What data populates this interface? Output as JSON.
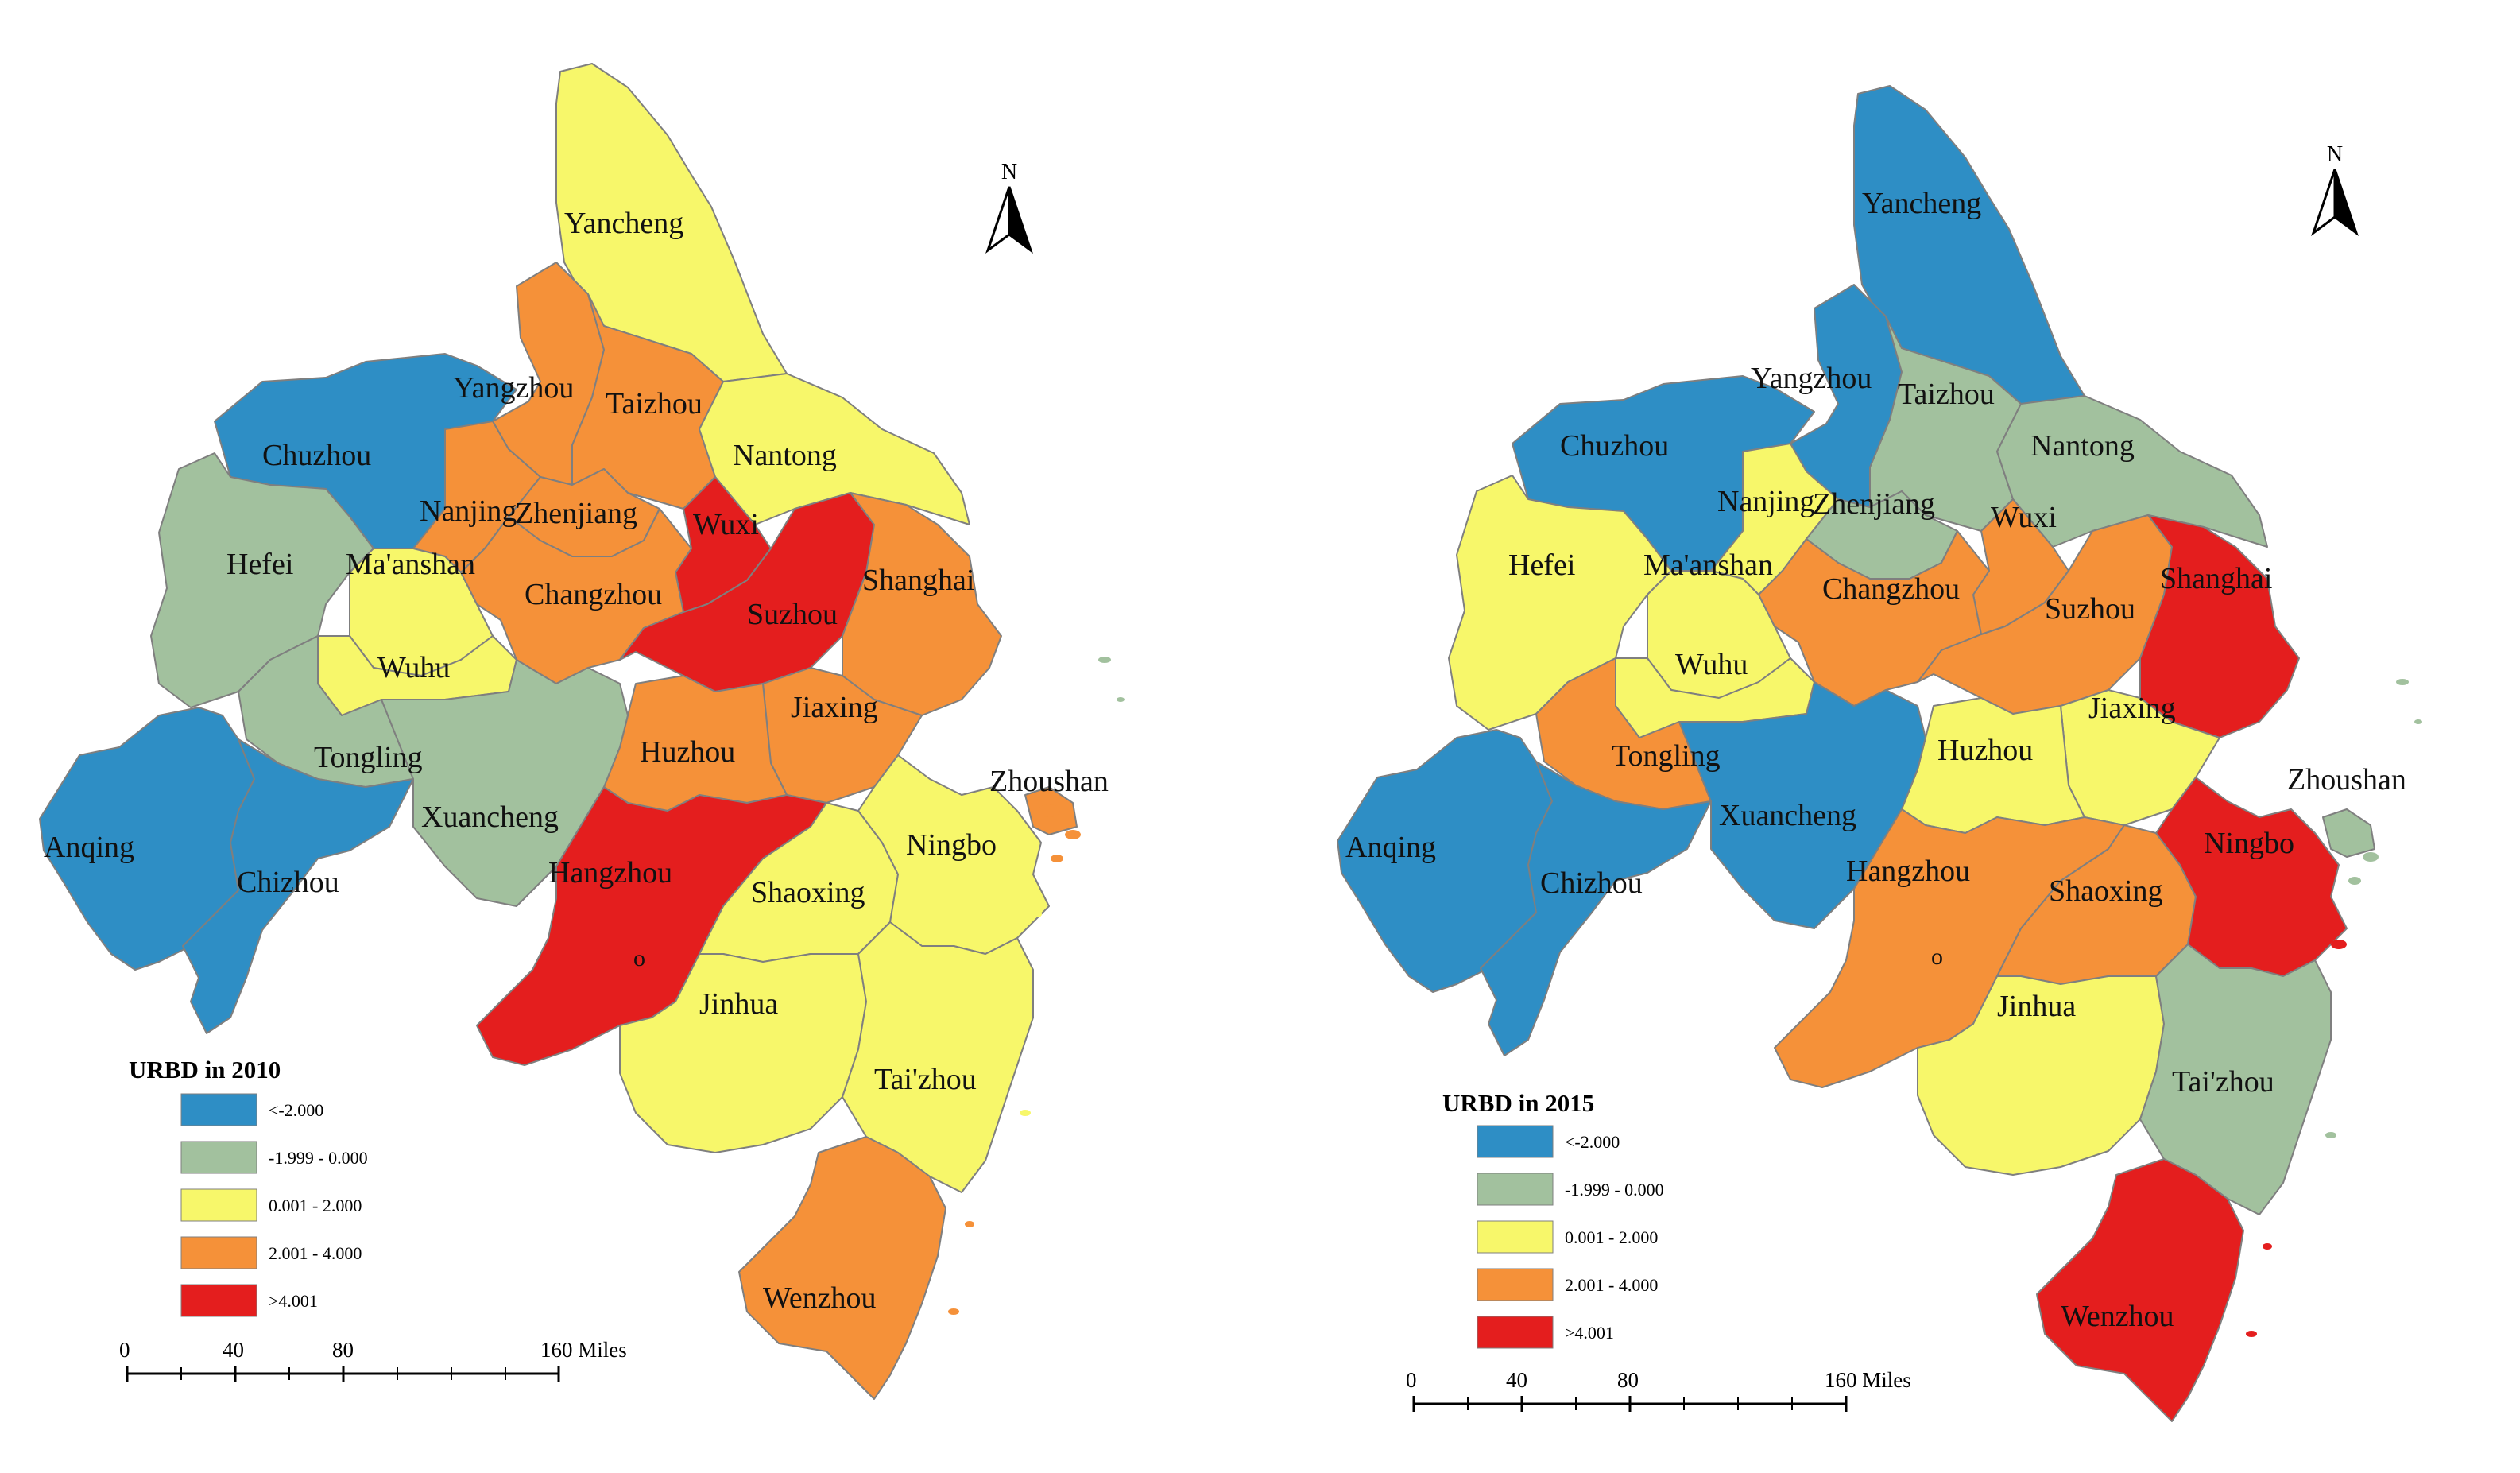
{
  "north_label": "N",
  "scale_labels": [
    "0",
    "40",
    "80",
    "160 Miles"
  ],
  "marker_text": "o",
  "classes": [
    {
      "label": "<-2.000",
      "color": "#2e8ec5"
    },
    {
      "label": "-1.999 - 0.000",
      "color": "#a2c19e"
    },
    {
      "label": "0.001 - 2.000",
      "color": "#f7f76a"
    },
    {
      "label": "2.001 - 4.000",
      "color": "#f59139"
    },
    {
      "label": ">4.001",
      "color": "#e41e1e"
    }
  ],
  "maps": [
    {
      "legend_title": "URBD in 2010",
      "legend_labels": [
        "<-2.000",
        "-1.999 - 0.000",
        "0.001 - 2.000",
        "2.001 - 4.000",
        ">4.001"
      ],
      "cities": [
        {
          "name": "Yancheng",
          "class": 2
        },
        {
          "name": "Yangzhou",
          "class": 3
        },
        {
          "name": "Taizhou",
          "class": 3
        },
        {
          "name": "Nantong",
          "class": 2
        },
        {
          "name": "Chuzhou",
          "class": 0
        },
        {
          "name": "Nanjing",
          "class": 3
        },
        {
          "name": "Zhenjiang",
          "class": 3
        },
        {
          "name": "Wuxi",
          "class": 4
        },
        {
          "name": "Hefei",
          "class": 1
        },
        {
          "name": "Ma'anshan",
          "class": 2
        },
        {
          "name": "Changzhou",
          "class": 3
        },
        {
          "name": "Suzhou",
          "class": 4
        },
        {
          "name": "Shanghai",
          "class": 3
        },
        {
          "name": "Wuhu",
          "class": 2
        },
        {
          "name": "Tongling",
          "class": 1
        },
        {
          "name": "Jiaxing",
          "class": 3
        },
        {
          "name": "Huzhou",
          "class": 3
        },
        {
          "name": "Xuancheng",
          "class": 1
        },
        {
          "name": "Zhoushan",
          "class": 3
        },
        {
          "name": "Anqing",
          "class": 0
        },
        {
          "name": "Chizhou",
          "class": 0
        },
        {
          "name": "Hangzhou",
          "class": 4
        },
        {
          "name": "Shaoxing",
          "class": 2
        },
        {
          "name": "Ningbo",
          "class": 2
        },
        {
          "name": "Jinhua",
          "class": 2
        },
        {
          "name": "Tai'zhou",
          "class": 2
        },
        {
          "name": "Wenzhou",
          "class": 3
        }
      ]
    },
    {
      "legend_title": "URBD in 2015",
      "legend_labels": [
        "<-2.000",
        "-1.999 - 0.000",
        "0.001 - 2.000",
        "2.001 - 4.000",
        ">4.001"
      ],
      "cities": [
        {
          "name": "Yancheng",
          "class": 0
        },
        {
          "name": "Yangzhou",
          "class": 0
        },
        {
          "name": "Taizhou",
          "class": 1
        },
        {
          "name": "Nantong",
          "class": 1
        },
        {
          "name": "Chuzhou",
          "class": 0
        },
        {
          "name": "Nanjing",
          "class": 2
        },
        {
          "name": "Zhenjiang",
          "class": 1
        },
        {
          "name": "Wuxi",
          "class": 3
        },
        {
          "name": "Hefei",
          "class": 2
        },
        {
          "name": "Ma'anshan",
          "class": 2
        },
        {
          "name": "Changzhou",
          "class": 3
        },
        {
          "name": "Suzhou",
          "class": 3
        },
        {
          "name": "Shanghai",
          "class": 4
        },
        {
          "name": "Wuhu",
          "class": 2
        },
        {
          "name": "Tongling",
          "class": 3
        },
        {
          "name": "Jiaxing",
          "class": 2
        },
        {
          "name": "Huzhou",
          "class": 2
        },
        {
          "name": "Xuancheng",
          "class": 0
        },
        {
          "name": "Zhoushan",
          "class": 1
        },
        {
          "name": "Anqing",
          "class": 0
        },
        {
          "name": "Chizhou",
          "class": 0
        },
        {
          "name": "Hangzhou",
          "class": 3
        },
        {
          "name": "Shaoxing",
          "class": 3
        },
        {
          "name": "Ningbo",
          "class": 4
        },
        {
          "name": "Jinhua",
          "class": 2
        },
        {
          "name": "Tai'zhou",
          "class": 1
        },
        {
          "name": "Wenzhou",
          "class": 4
        }
      ]
    }
  ]
}
